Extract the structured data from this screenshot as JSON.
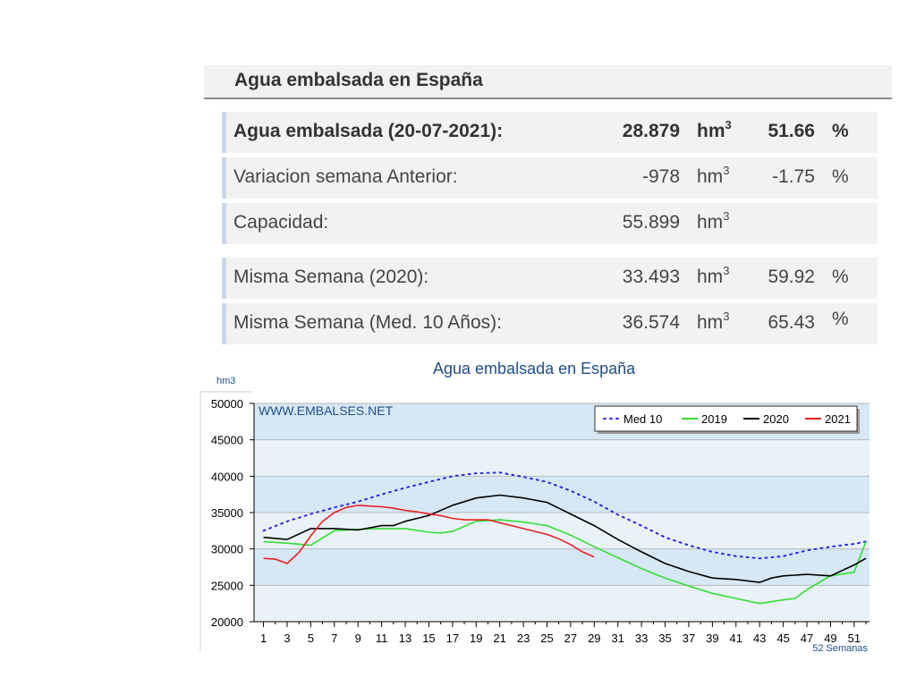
{
  "header": {
    "title": "Agua embalsada en España"
  },
  "rows": [
    {
      "label": "Agua embalsada (20-07-2021):",
      "value": "28.879",
      "unit": "hm",
      "unit_exp": "3",
      "pct": "51.66",
      "pct_sym": "%"
    },
    {
      "label": "Variacion semana Anterior:",
      "value": "-978",
      "unit": "hm",
      "unit_exp": "3",
      "pct": "-1.75",
      "pct_sym": "%"
    },
    {
      "label": "Capacidad:",
      "value": "55.899",
      "unit": "hm",
      "unit_exp": "3",
      "pct": "",
      "pct_sym": ""
    },
    {
      "label": "Misma Semana (2020):",
      "value": "33.493",
      "unit": "hm",
      "unit_exp": "3",
      "pct": "59.92",
      "pct_sym": "%"
    },
    {
      "label": "Misma Semana (Med. 10 Años):",
      "value": "36.574",
      "unit": "hm",
      "unit_exp": "3",
      "pct": "65.43",
      "pct_sym": "%"
    }
  ],
  "chart_data": {
    "type": "line",
    "title": "Agua embalsada en España",
    "ylabel": "hm3",
    "xlabel": "52 Semanas",
    "watermark": "WWW.EMBALSES.NET",
    "ylim": [
      20000,
      50000
    ],
    "yticks": [
      20000,
      25000,
      30000,
      35000,
      40000,
      45000,
      50000
    ],
    "xticks": [
      1,
      3,
      5,
      7,
      9,
      11,
      13,
      15,
      17,
      19,
      21,
      23,
      25,
      27,
      29,
      31,
      33,
      35,
      37,
      39,
      41,
      43,
      45,
      47,
      49,
      51
    ],
    "xlim": [
      0.2,
      52.3
    ],
    "grid": true,
    "legend_position": "top-right",
    "colors": {
      "plot_bg": "#e9f2f9",
      "band": "#d6e8f5",
      "grid": "#b8b8b8"
    },
    "series": [
      {
        "name": "Med 10",
        "color": "#2a2ad8",
        "style": "dotted",
        "x": [
          1,
          3,
          5,
          7,
          9,
          11,
          13,
          15,
          17,
          19,
          21,
          23,
          25,
          27,
          29,
          31,
          33,
          35,
          37,
          39,
          41,
          43,
          45,
          47,
          49,
          51,
          52
        ],
        "y": [
          32500,
          33800,
          34800,
          35700,
          36500,
          37500,
          38400,
          39200,
          40000,
          40400,
          40500,
          39900,
          39200,
          38000,
          36500,
          34700,
          33200,
          31600,
          30500,
          29600,
          29000,
          28700,
          29000,
          29800,
          30300,
          30700,
          31000
        ]
      },
      {
        "name": "2019",
        "color": "#33dd33",
        "style": "solid",
        "x": [
          1,
          3,
          5,
          7,
          9,
          11,
          13,
          15,
          16,
          17,
          19,
          21,
          23,
          25,
          27,
          29,
          31,
          33,
          35,
          37,
          39,
          41,
          43,
          45,
          46,
          47,
          49,
          51,
          52
        ],
        "y": [
          31000,
          30800,
          30500,
          32500,
          32700,
          32800,
          32800,
          32300,
          32200,
          32400,
          33800,
          34000,
          33700,
          33200,
          31900,
          30300,
          28800,
          27300,
          26000,
          24900,
          23900,
          23200,
          22500,
          23000,
          23200,
          24400,
          26300,
          26800,
          31000
        ]
      },
      {
        "name": "2020",
        "color": "#000000",
        "style": "solid",
        "x": [
          1,
          3,
          5,
          7,
          9,
          11,
          12,
          13,
          15,
          17,
          19,
          21,
          23,
          25,
          27,
          29,
          31,
          33,
          35,
          37,
          39,
          41,
          43,
          44,
          45,
          47,
          49,
          51,
          52
        ],
        "y": [
          31600,
          31300,
          32800,
          32800,
          32600,
          33200,
          33200,
          33800,
          34600,
          36000,
          37000,
          37400,
          37000,
          36400,
          34800,
          33200,
          31300,
          29600,
          28000,
          26900,
          26000,
          25800,
          25400,
          26000,
          26300,
          26500,
          26300,
          27800,
          28700
        ]
      },
      {
        "name": "2021",
        "color": "#e82020",
        "style": "solid",
        "x": [
          1,
          2,
          3,
          4,
          5,
          6,
          7,
          8,
          9,
          10,
          11,
          12,
          13,
          14,
          15,
          16,
          17,
          18,
          19,
          20,
          21,
          22,
          23,
          24,
          25,
          26,
          27,
          28,
          29
        ],
        "y": [
          28700,
          28600,
          28000,
          29500,
          31800,
          33800,
          35000,
          35700,
          36000,
          35900,
          35800,
          35600,
          35300,
          35100,
          34800,
          34600,
          34200,
          34000,
          34000,
          34000,
          33600,
          33200,
          32800,
          32400,
          32000,
          31400,
          30600,
          29600,
          28900
        ]
      }
    ]
  }
}
